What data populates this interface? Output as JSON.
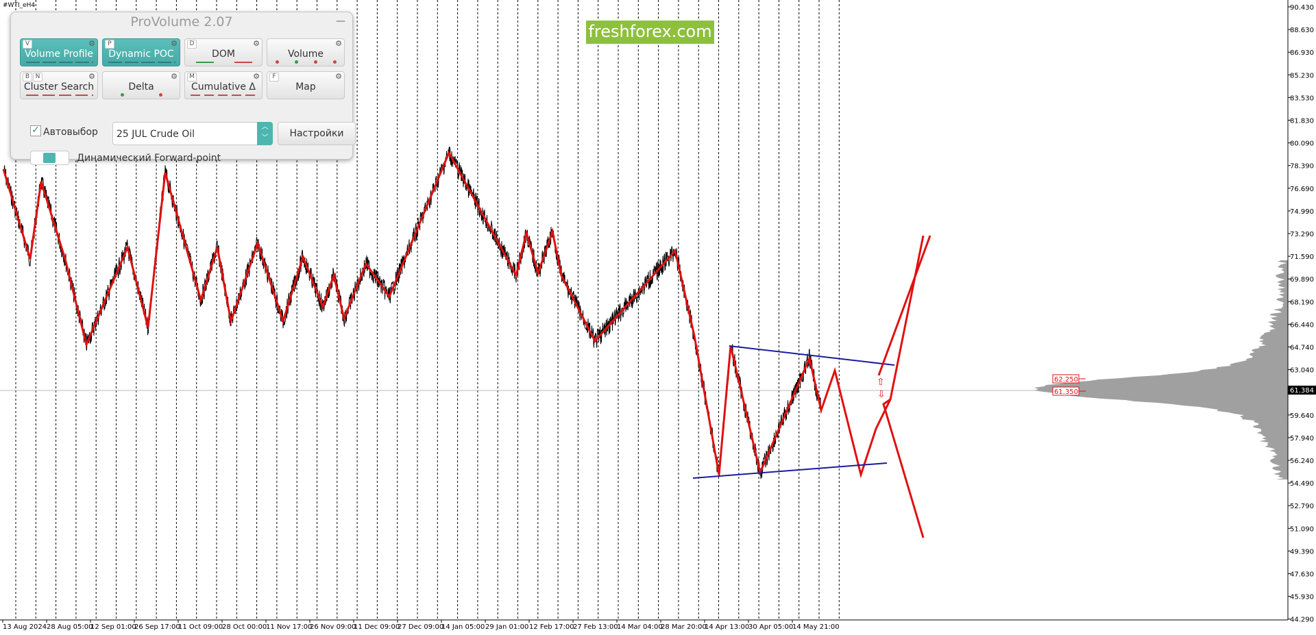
{
  "symbol": "#WTI_eH4",
  "panel": {
    "title": "ProVolume 2.07",
    "minimize_icon": "minimize-icon",
    "buttons": [
      {
        "key": "V",
        "label": "Volume Profile",
        "active": true
      },
      {
        "key": "P",
        "label": "Dynamic POC",
        "active": true
      },
      {
        "key": "D",
        "label": "DOM",
        "active": false
      },
      {
        "key": "",
        "label": "Volume",
        "active": false
      },
      {
        "key": "B",
        "key2": "N",
        "label": "Cluster Search",
        "active": false
      },
      {
        "key": "",
        "label": "Delta",
        "active": false
      },
      {
        "key": "M",
        "label": "Cumulative Δ",
        "active": false
      },
      {
        "key": "F",
        "label": "Map",
        "active": false
      }
    ],
    "autoselect": {
      "label": "Автовыбор",
      "checked": true
    },
    "instrument": "25 JUL Crude Oil",
    "settings_label": "Настройки",
    "forward_point_label": "Динамический Forward-point"
  },
  "logo_text": "freshforex.com",
  "chart_data": {
    "type": "line",
    "price_axis": [
      "90.430",
      "88.630",
      "86.930",
      "85.230",
      "83.530",
      "81.830",
      "80.090",
      "78.390",
      "76.690",
      "74.990",
      "73.290",
      "71.590",
      "69.890",
      "68.190",
      "66.440",
      "64.740",
      "63.040",
      "61.384",
      "59.640",
      "57.940",
      "56.240",
      "54.490",
      "52.790",
      "51.090",
      "49.390",
      "47.630",
      "45.930",
      "44.290"
    ],
    "current_price": "61.384",
    "level_labels": [
      "62.250",
      "61.350"
    ],
    "time_axis": [
      "13 Aug 2024",
      "28 Aug 05:00",
      "12 Sep 01:00",
      "26 Sep 17:00",
      "11 Oct 09:00",
      "28 Oct 00:00",
      "11 Nov 17:00",
      "26 Nov 09:00",
      "11 Dec 09:00",
      "27 Dec 09:00",
      "14 Jan 05:00",
      "29 Jan 01:00",
      "12 Feb 17:00",
      "27 Feb 13:00",
      "14 Mar 04:00",
      "28 Mar 20:00",
      "14 Apr 13:00",
      "30 Apr 05:00",
      "14 May 21:00"
    ],
    "colors": {
      "zigzag": "#e01010",
      "trendline": "#1a1a9e",
      "price": "#000000",
      "profile": "#9c9c9c"
    }
  }
}
